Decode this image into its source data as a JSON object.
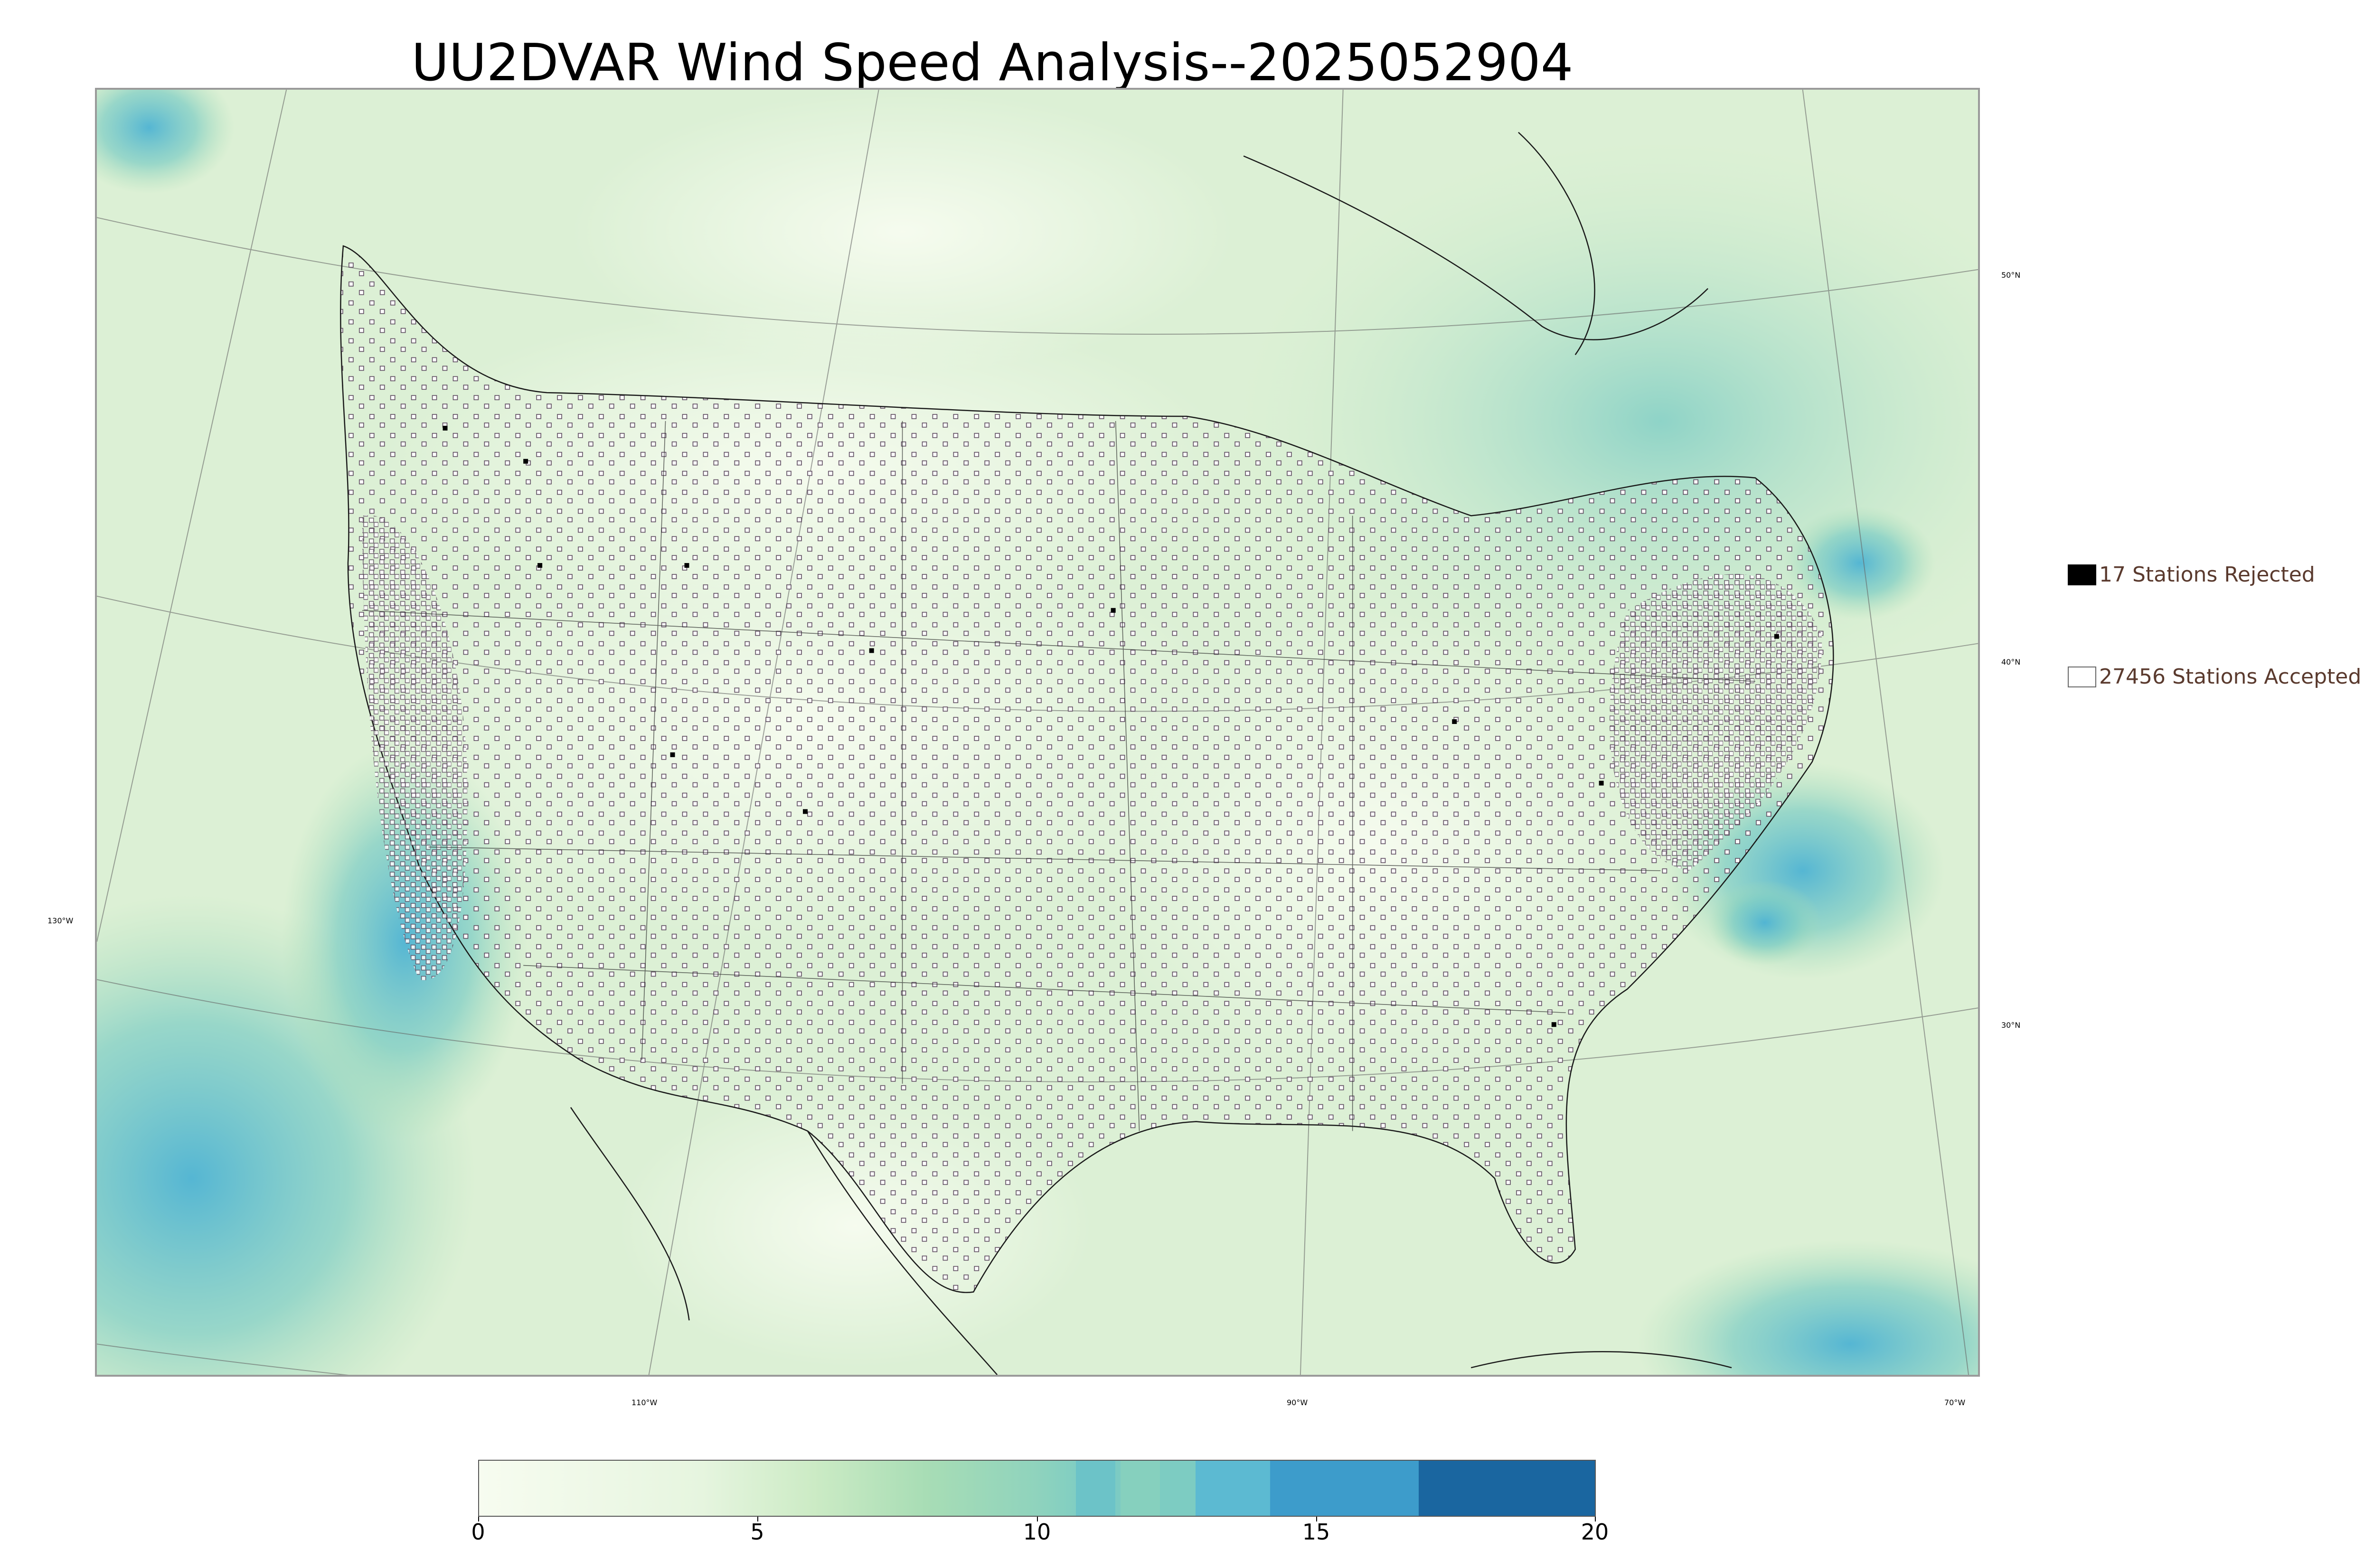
{
  "title": "UU2DVAR Wind Speed Analysis--2025052904",
  "map": {
    "longitude_labels": [
      "130°W",
      "110°W",
      "90°W",
      "70°W"
    ],
    "latitude_labels": [
      "50°N",
      "40°N",
      "30°N"
    ]
  },
  "legend": {
    "rejected_label": "17 Stations Rejected",
    "accepted_label": "27456 Stations Accepted",
    "rejected_color": "#000000",
    "accepted_color": "#ffffff"
  },
  "colorbar": {
    "ticks": [
      "0",
      "5",
      "10",
      "15",
      "20"
    ],
    "range": [
      0,
      20
    ],
    "colors": [
      "#f7fcf0",
      "#e0f3db",
      "#ccebc5",
      "#a8ddb5",
      "#7bccc4",
      "#4eb3d3",
      "#2b8cbe",
      "#0868ac"
    ]
  }
}
